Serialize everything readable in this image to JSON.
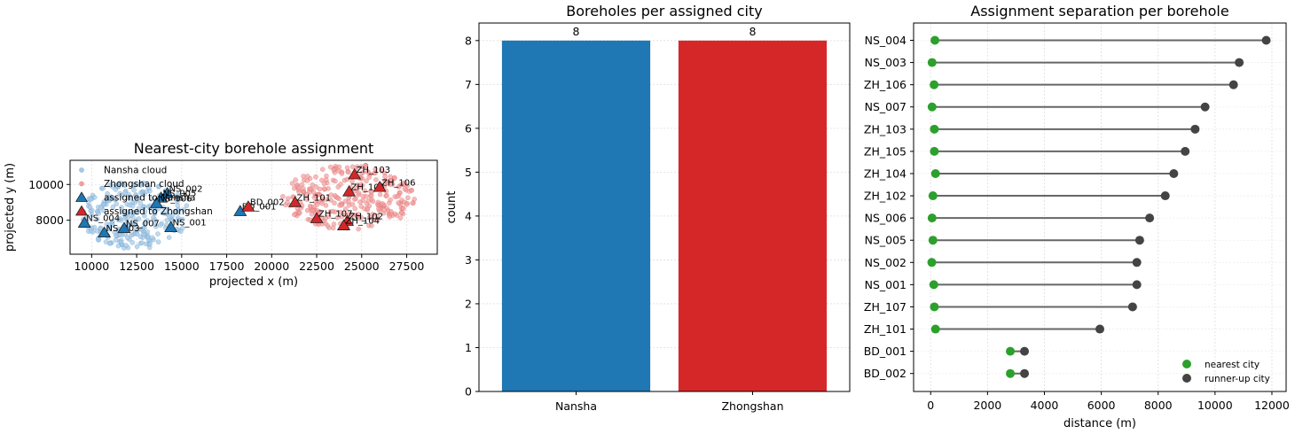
{
  "chart_data": [
    {
      "type": "scatter",
      "title": "Nearest-city borehole assignment",
      "xlabel": "projected x (m)",
      "ylabel": "projected y (m)",
      "xlim": [
        8800,
        29200
      ],
      "ylim": [
        6100,
        11350
      ],
      "xticks": [
        "10000",
        "12500",
        "15000",
        "17500",
        "20000",
        "22500",
        "25000",
        "27500"
      ],
      "xtick_values": [
        10000,
        12500,
        15000,
        17500,
        20000,
        22500,
        25000,
        27500
      ],
      "yticks": [
        "8000",
        "10000"
      ],
      "ytick_values": [
        8000,
        10000
      ],
      "grid": true,
      "legend_position": "top-left",
      "colors": {
        "nansha": "#1f77b4",
        "zhongshan": "#d62728",
        "nansha_cloud": "#a6c8e6",
        "zhongshan_cloud": "#f0a0a0"
      },
      "legend": [
        "Nansha cloud",
        "Zhongshan cloud",
        "assigned to Nansha",
        "assigned to Zhongshan"
      ],
      "clouds": [
        {
          "name": "Nansha cloud",
          "cx": 12400,
          "cy": 8300,
          "rx": 3000,
          "ry": 1900,
          "n": 260
        },
        {
          "name": "Zhongshan cloud",
          "cx": 24300,
          "cy": 9300,
          "rx": 3700,
          "ry": 1850,
          "n": 300
        }
      ],
      "boreholes": [
        {
          "id": "NS_001",
          "x": 14400,
          "y": 7600,
          "group": "nansha"
        },
        {
          "id": "NS_002",
          "x": 14200,
          "y": 9500,
          "group": "nansha"
        },
        {
          "id": "NS_003",
          "x": 10700,
          "y": 7300,
          "group": "nansha"
        },
        {
          "id": "NS_004",
          "x": 9600,
          "y": 7850,
          "group": "nansha"
        },
        {
          "id": "NS_005",
          "x": 13850,
          "y": 9250,
          "group": "nansha"
        },
        {
          "id": "NS_006",
          "x": 13600,
          "y": 8950,
          "group": "nansha"
        },
        {
          "id": "NS_007",
          "x": 11800,
          "y": 7550,
          "group": "nansha"
        },
        {
          "id": "BD_001",
          "x": 18250,
          "y": 8500,
          "group": "nansha"
        },
        {
          "id": "BD_002",
          "x": 18700,
          "y": 8750,
          "group": "zhongshan"
        },
        {
          "id": "ZH_101",
          "x": 21300,
          "y": 9000,
          "group": "zhongshan"
        },
        {
          "id": "ZH_102",
          "x": 24200,
          "y": 7950,
          "group": "zhongshan"
        },
        {
          "id": "ZH_103",
          "x": 24600,
          "y": 10550,
          "group": "zhongshan"
        },
        {
          "id": "ZH_104",
          "x": 24000,
          "y": 7700,
          "group": "zhongshan"
        },
        {
          "id": "ZH_105",
          "x": 24300,
          "y": 9600,
          "group": "zhongshan"
        },
        {
          "id": "ZH_106",
          "x": 26000,
          "y": 9850,
          "group": "zhongshan"
        },
        {
          "id": "ZH_107",
          "x": 22500,
          "y": 8100,
          "group": "zhongshan"
        }
      ]
    },
    {
      "type": "bar",
      "title": "Boreholes per assigned city",
      "xlabel": "",
      "ylabel": "count",
      "categories": [
        "Nansha",
        "Zhongshan"
      ],
      "values": [
        8,
        8
      ],
      "data_labels": [
        "8",
        "8"
      ],
      "colors": [
        "#1f77b4",
        "#d62728"
      ],
      "ylim": [
        0,
        8.4
      ],
      "yticks": [
        "0",
        "1",
        "2",
        "3",
        "4",
        "5",
        "6",
        "7",
        "8"
      ],
      "grid": true
    },
    {
      "type": "scatter",
      "title": "Assignment separation per borehole",
      "xlabel": "distance (m)",
      "ylabel": "",
      "xlim": [
        -600,
        12500
      ],
      "xticks": [
        "0",
        "2000",
        "4000",
        "6000",
        "8000",
        "10000",
        "12000"
      ],
      "xtick_values": [
        0,
        2000,
        4000,
        6000,
        8000,
        10000,
        12000
      ],
      "grid": true,
      "legend_position": "bottom-right",
      "legend": [
        "nearest city",
        "runner-up city"
      ],
      "colors": {
        "nearest": "#2ca02c",
        "runner_up": "#444444",
        "line": "#666666"
      },
      "rows": [
        {
          "id": "NS_004",
          "nearest": 150,
          "runner_up": 11800
        },
        {
          "id": "NS_003",
          "nearest": 50,
          "runner_up": 10850
        },
        {
          "id": "ZH_106",
          "nearest": 120,
          "runner_up": 10650
        },
        {
          "id": "NS_007",
          "nearest": 50,
          "runner_up": 9650
        },
        {
          "id": "ZH_103",
          "nearest": 130,
          "runner_up": 9300
        },
        {
          "id": "ZH_105",
          "nearest": 130,
          "runner_up": 8950
        },
        {
          "id": "ZH_104",
          "nearest": 170,
          "runner_up": 8550
        },
        {
          "id": "ZH_102",
          "nearest": 80,
          "runner_up": 8250
        },
        {
          "id": "NS_006",
          "nearest": 50,
          "runner_up": 7700
        },
        {
          "id": "NS_005",
          "nearest": 80,
          "runner_up": 7350
        },
        {
          "id": "NS_002",
          "nearest": 40,
          "runner_up": 7250
        },
        {
          "id": "NS_001",
          "nearest": 110,
          "runner_up": 7250
        },
        {
          "id": "ZH_107",
          "nearest": 130,
          "runner_up": 7100
        },
        {
          "id": "ZH_101",
          "nearest": 170,
          "runner_up": 5950
        },
        {
          "id": "BD_001",
          "nearest": 2800,
          "runner_up": 3300
        },
        {
          "id": "BD_002",
          "nearest": 2800,
          "runner_up": 3300
        }
      ]
    }
  ]
}
